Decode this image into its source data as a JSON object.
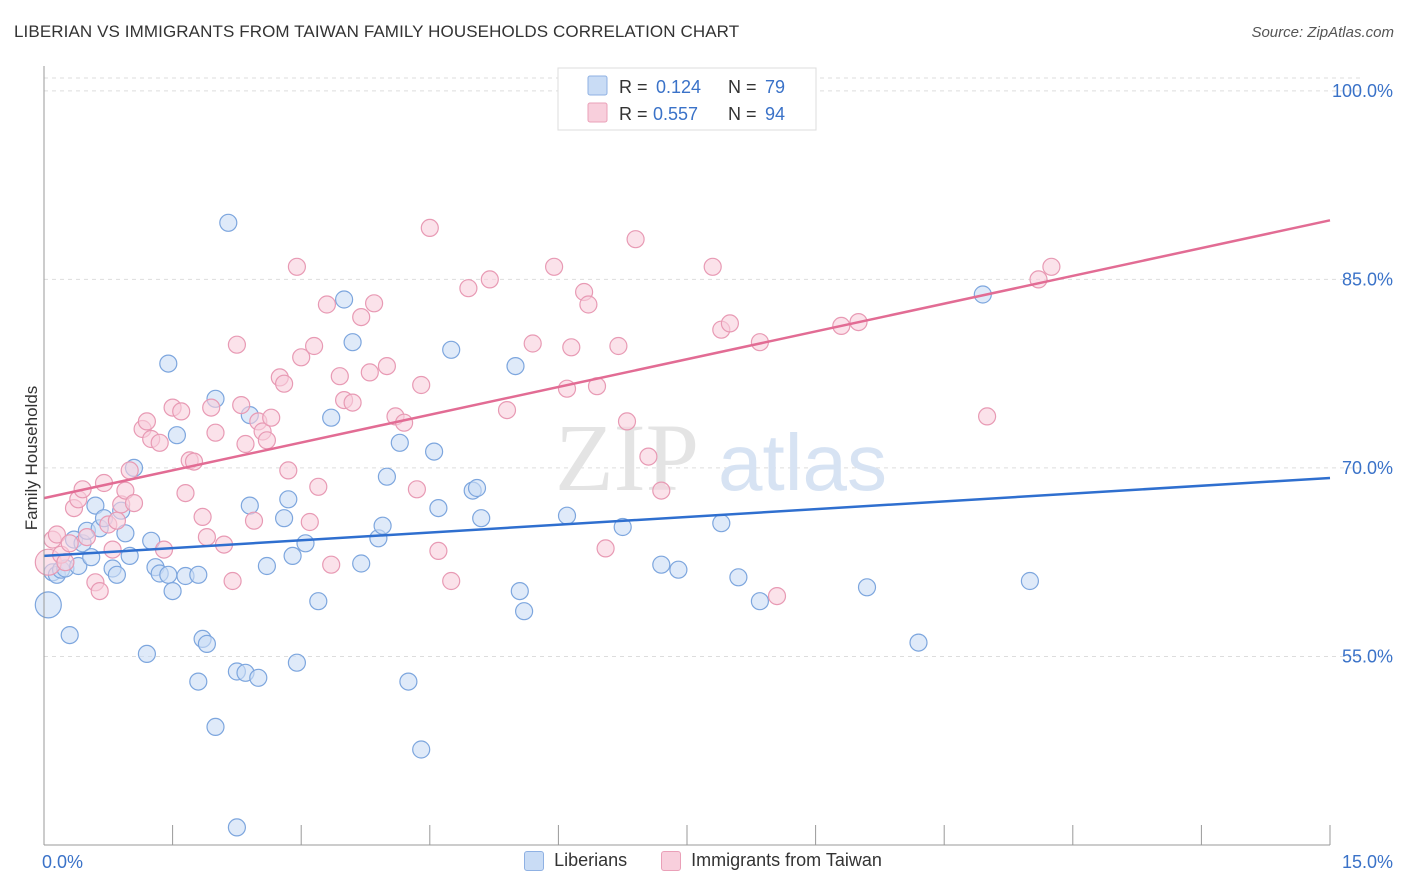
{
  "title": "LIBERIAN VS IMMIGRANTS FROM TAIWAN FAMILY HOUSEHOLDS CORRELATION CHART",
  "source": "Source: ZipAtlas.com",
  "watermark": {
    "zip": "ZIP",
    "atlas": "atlas"
  },
  "legend_box": {
    "r_label": "R =",
    "n_label": "N =",
    "rows": [
      {
        "r": "0.124",
        "n": "79",
        "color": "#c9dcf5"
      },
      {
        "r": "0.557",
        "n": "94",
        "color": "#f8cfdc"
      }
    ]
  },
  "colors": {
    "blue_fill": "#c9dcf5",
    "blue_stroke": "#7da6de",
    "blue_line": "#2f6fcf",
    "pink_fill": "#f8cfdc",
    "pink_stroke": "#e89ab4",
    "pink_line": "#e26c94",
    "tick_label": "#3a72c8",
    "grid": "#dddddd"
  },
  "chart_data": {
    "type": "scatter",
    "title": "LIBERIAN VS IMMIGRANTS FROM TAIWAN FAMILY HOUSEHOLDS CORRELATION CHART",
    "xlabel": "",
    "ylabel": "Family Households",
    "xlim": [
      0,
      15
    ],
    "ylim": [
      40,
      101.5
    ],
    "x_tick_labels": [
      "0.0%",
      "15.0%"
    ],
    "y_ticks": [
      55,
      70,
      85,
      100
    ],
    "y_tick_labels": [
      "55.0%",
      "70.0%",
      "85.0%",
      "100.0%"
    ],
    "grid": "horizontal dashed",
    "legend": "top-center and bottom",
    "series": [
      {
        "name": "Liberians",
        "color": "#c9dcf5",
        "r": 0.124,
        "n": 79,
        "trend": {
          "x": [
            0,
            15
          ],
          "y": [
            63.0,
            69.2
          ]
        },
        "points": [
          [
            0.05,
            59.1
          ],
          [
            0.1,
            61.7
          ],
          [
            0.15,
            61.5
          ],
          [
            0.2,
            61.9
          ],
          [
            0.25,
            62.0
          ],
          [
            0.3,
            56.7
          ],
          [
            0.35,
            64.3
          ],
          [
            0.4,
            62.2
          ],
          [
            0.45,
            64.0
          ],
          [
            0.5,
            65.0
          ],
          [
            0.55,
            62.9
          ],
          [
            0.6,
            67.0
          ],
          [
            0.65,
            65.2
          ],
          [
            0.7,
            66.0
          ],
          [
            0.8,
            62.0
          ],
          [
            0.85,
            61.5
          ],
          [
            0.9,
            66.6
          ],
          [
            0.95,
            64.8
          ],
          [
            1.0,
            63.0
          ],
          [
            1.05,
            70.0
          ],
          [
            1.2,
            55.2
          ],
          [
            1.25,
            64.2
          ],
          [
            1.3,
            62.1
          ],
          [
            1.35,
            61.6
          ],
          [
            1.45,
            61.5
          ],
          [
            1.5,
            60.2
          ],
          [
            1.45,
            78.3
          ],
          [
            1.55,
            72.6
          ],
          [
            1.65,
            61.4
          ],
          [
            1.8,
            61.5
          ],
          [
            1.8,
            53.0
          ],
          [
            1.85,
            56.4
          ],
          [
            1.9,
            56.0
          ],
          [
            2.0,
            75.5
          ],
          [
            2.0,
            49.4
          ],
          [
            2.15,
            89.5
          ],
          [
            2.25,
            53.8
          ],
          [
            2.25,
            41.4
          ],
          [
            2.35,
            53.7
          ],
          [
            2.4,
            74.2
          ],
          [
            2.4,
            67.0
          ],
          [
            2.5,
            53.3
          ],
          [
            2.6,
            62.2
          ],
          [
            2.8,
            66.0
          ],
          [
            2.85,
            67.5
          ],
          [
            2.9,
            63.0
          ],
          [
            2.95,
            54.5
          ],
          [
            3.05,
            64.0
          ],
          [
            3.2,
            59.4
          ],
          [
            3.35,
            74.0
          ],
          [
            3.5,
            83.4
          ],
          [
            3.6,
            80.0
          ],
          [
            3.7,
            62.4
          ],
          [
            3.9,
            64.4
          ],
          [
            3.95,
            65.4
          ],
          [
            4.0,
            69.3
          ],
          [
            4.15,
            72.0
          ],
          [
            4.25,
            53.0
          ],
          [
            4.4,
            47.6
          ],
          [
            4.55,
            71.3
          ],
          [
            4.6,
            66.8
          ],
          [
            4.75,
            79.4
          ],
          [
            5.0,
            68.2
          ],
          [
            5.05,
            68.4
          ],
          [
            5.1,
            66.0
          ],
          [
            5.5,
            78.1
          ],
          [
            5.55,
            60.2
          ],
          [
            5.6,
            58.6
          ],
          [
            6.1,
            66.2
          ],
          [
            6.75,
            65.3
          ],
          [
            7.2,
            62.3
          ],
          [
            7.4,
            61.9
          ],
          [
            7.9,
            65.6
          ],
          [
            8.1,
            61.3
          ],
          [
            8.35,
            59.4
          ],
          [
            9.6,
            60.5
          ],
          [
            10.2,
            56.1
          ],
          [
            10.95,
            83.8
          ],
          [
            11.5,
            61.0
          ]
        ]
      },
      {
        "name": "Immigrants from Taiwan",
        "color": "#f8cfdc",
        "r": 0.557,
        "n": 94,
        "trend": {
          "x": [
            0,
            15
          ],
          "y": [
            67.6,
            89.7
          ]
        },
        "points": [
          [
            0.05,
            62.5
          ],
          [
            0.1,
            64.3
          ],
          [
            0.15,
            64.7
          ],
          [
            0.2,
            63.1
          ],
          [
            0.25,
            62.5
          ],
          [
            0.3,
            64.0
          ],
          [
            0.35,
            66.8
          ],
          [
            0.4,
            67.5
          ],
          [
            0.45,
            68.3
          ],
          [
            0.5,
            64.5
          ],
          [
            0.6,
            60.9
          ],
          [
            0.65,
            60.2
          ],
          [
            0.7,
            68.8
          ],
          [
            0.75,
            65.5
          ],
          [
            0.8,
            63.5
          ],
          [
            0.85,
            65.8
          ],
          [
            0.9,
            67.1
          ],
          [
            0.95,
            68.2
          ],
          [
            1.0,
            69.8
          ],
          [
            1.05,
            67.2
          ],
          [
            1.15,
            73.1
          ],
          [
            1.2,
            73.7
          ],
          [
            1.25,
            72.3
          ],
          [
            1.35,
            72.0
          ],
          [
            1.4,
            63.5
          ],
          [
            1.5,
            74.8
          ],
          [
            1.6,
            74.5
          ],
          [
            1.65,
            68.0
          ],
          [
            1.7,
            70.6
          ],
          [
            1.75,
            70.5
          ],
          [
            1.85,
            66.1
          ],
          [
            1.9,
            64.5
          ],
          [
            1.95,
            74.8
          ],
          [
            2.0,
            72.8
          ],
          [
            2.1,
            63.9
          ],
          [
            2.2,
            61.0
          ],
          [
            2.25,
            79.8
          ],
          [
            2.3,
            75.0
          ],
          [
            2.35,
            71.9
          ],
          [
            2.45,
            65.8
          ],
          [
            2.5,
            73.7
          ],
          [
            2.55,
            72.9
          ],
          [
            2.6,
            72.2
          ],
          [
            2.65,
            74.0
          ],
          [
            2.75,
            77.2
          ],
          [
            2.8,
            76.7
          ],
          [
            2.85,
            69.8
          ],
          [
            2.95,
            86.0
          ],
          [
            3.0,
            78.8
          ],
          [
            3.1,
            65.7
          ],
          [
            3.15,
            79.7
          ],
          [
            3.2,
            68.5
          ],
          [
            3.3,
            83.0
          ],
          [
            3.35,
            62.3
          ],
          [
            3.45,
            77.3
          ],
          [
            3.5,
            75.4
          ],
          [
            3.6,
            75.2
          ],
          [
            3.7,
            82.0
          ],
          [
            3.8,
            77.6
          ],
          [
            3.85,
            83.1
          ],
          [
            4.0,
            78.1
          ],
          [
            4.1,
            74.1
          ],
          [
            4.2,
            73.6
          ],
          [
            4.35,
            68.3
          ],
          [
            4.4,
            76.6
          ],
          [
            4.5,
            89.1
          ],
          [
            4.6,
            63.4
          ],
          [
            4.75,
            61.0
          ],
          [
            4.95,
            84.3
          ],
          [
            5.2,
            85.0
          ],
          [
            5.4,
            74.6
          ],
          [
            5.7,
            79.9
          ],
          [
            5.95,
            86.0
          ],
          [
            6.1,
            76.3
          ],
          [
            6.15,
            79.6
          ],
          [
            6.3,
            84.0
          ],
          [
            6.35,
            83.0
          ],
          [
            6.45,
            76.5
          ],
          [
            6.55,
            63.6
          ],
          [
            6.7,
            79.7
          ],
          [
            6.8,
            73.7
          ],
          [
            6.9,
            88.2
          ],
          [
            7.05,
            70.9
          ],
          [
            7.2,
            68.2
          ],
          [
            7.8,
            86.0
          ],
          [
            7.9,
            81.0
          ],
          [
            8.0,
            81.5
          ],
          [
            8.35,
            80.0
          ],
          [
            8.55,
            59.8
          ],
          [
            9.3,
            81.3
          ],
          [
            9.5,
            81.6
          ],
          [
            11.0,
            74.1
          ],
          [
            11.6,
            85.0
          ],
          [
            11.75,
            86.0
          ]
        ]
      }
    ]
  },
  "bottom_legend": [
    {
      "label": "Liberians",
      "color": "#c9dcf5"
    },
    {
      "label": "Immigrants from Taiwan",
      "color": "#f8cfdc"
    }
  ]
}
